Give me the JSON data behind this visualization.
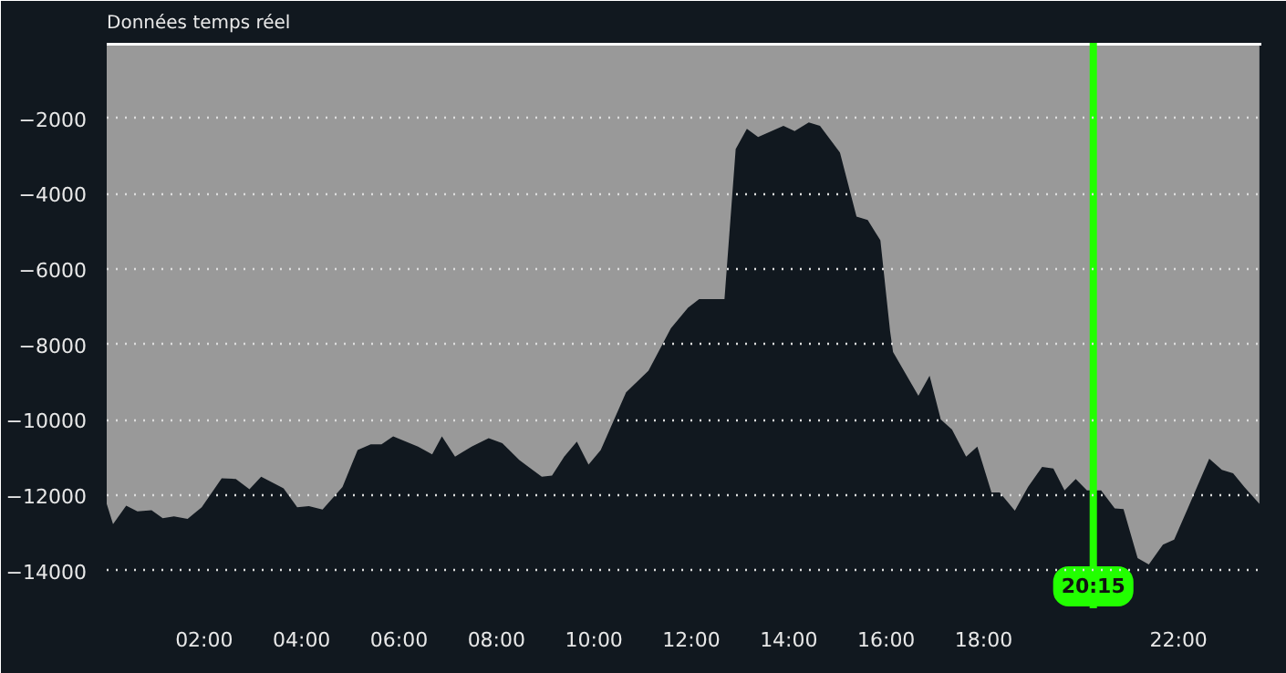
{
  "chart_data": {
    "type": "area",
    "title": "Données temps réel",
    "x": [
      0,
      0.13,
      0.4,
      0.63,
      0.92,
      1.15,
      1.38,
      1.66,
      1.95,
      2.36,
      2.65,
      2.93,
      3.17,
      3.63,
      3.91,
      4.15,
      4.43,
      4.84,
      5.15,
      5.42,
      5.64,
      5.88,
      6.39,
      6.68,
      6.88,
      7.15,
      7.49,
      7.84,
      8.12,
      8.47,
      8.93,
      9.14,
      9.39,
      9.65,
      9.89,
      10.14,
      10.66,
      11.12,
      11.58,
      11.93,
      12.16,
      12.68,
      12.91,
      13.14,
      13.37,
      13.89,
      14.12,
      14.41,
      14.64,
      15.05,
      15.39,
      15.62,
      15.88,
      16.08,
      16.14,
      16.66,
      16.89,
      17.12,
      17.35,
      17.64,
      17.87,
      18.16,
      18.33,
      18.64,
      18.91,
      19.2,
      19.43,
      19.66,
      19.89,
      20.12,
      20.41,
      20.69,
      20.87,
      21.16,
      21.39,
      21.68,
      21.91,
      22.2,
      22.63,
      22.89,
      23.12,
      23.35,
      23.66
    ],
    "series": [
      {
        "color": "#999999",
        "values": [
          -12230,
          -12770,
          -12280,
          -12430,
          -12400,
          -12610,
          -12560,
          -12630,
          -12320,
          -11550,
          -11570,
          -11840,
          -11510,
          -11820,
          -12320,
          -12290,
          -12380,
          -11780,
          -10800,
          -10650,
          -10650,
          -10440,
          -10710,
          -10920,
          -10440,
          -10980,
          -10710,
          -10490,
          -10620,
          -11070,
          -11510,
          -11480,
          -10980,
          -10580,
          -11190,
          -10800,
          -9270,
          -8700,
          -7570,
          -7030,
          -6800,
          -6800,
          -2820,
          -2280,
          -2500,
          -2200,
          -2340,
          -2110,
          -2200,
          -2910,
          -4610,
          -4700,
          -5240,
          -7660,
          -8200,
          -9360,
          -8830,
          -9990,
          -10260,
          -10980,
          -10710,
          -11930,
          -11930,
          -12410,
          -11780,
          -11250,
          -11290,
          -11870,
          -11570,
          -11870,
          -11870,
          -12350,
          -12370,
          -13670,
          -13840,
          -13310,
          -13180,
          -12320,
          -11030,
          -11330,
          -11420,
          -11780,
          -12230
        ]
      }
    ],
    "xlim": [
      0,
      23.7
    ],
    "ylim": [
      -15000,
      0
    ],
    "xticks": [
      {
        "value": 2,
        "label": "02:00"
      },
      {
        "value": 4,
        "label": "04:00"
      },
      {
        "value": 6,
        "label": "06:00"
      },
      {
        "value": 8,
        "label": "08:00"
      },
      {
        "value": 10,
        "label": "10:00"
      },
      {
        "value": 12,
        "label": "12:00"
      },
      {
        "value": 14,
        "label": "14:00"
      },
      {
        "value": 16,
        "label": "16:00"
      },
      {
        "value": 18,
        "label": "18:00"
      },
      {
        "value": 22,
        "label": "22:00"
      }
    ],
    "yticks": [
      -14000,
      -12000,
      -10000,
      -8000,
      -6000,
      -4000,
      -2000
    ],
    "grid": "y",
    "ref_lines": [
      {
        "axis": "x",
        "value": 20.25,
        "label": "20:15",
        "color": "#22ff00"
      }
    ]
  }
}
